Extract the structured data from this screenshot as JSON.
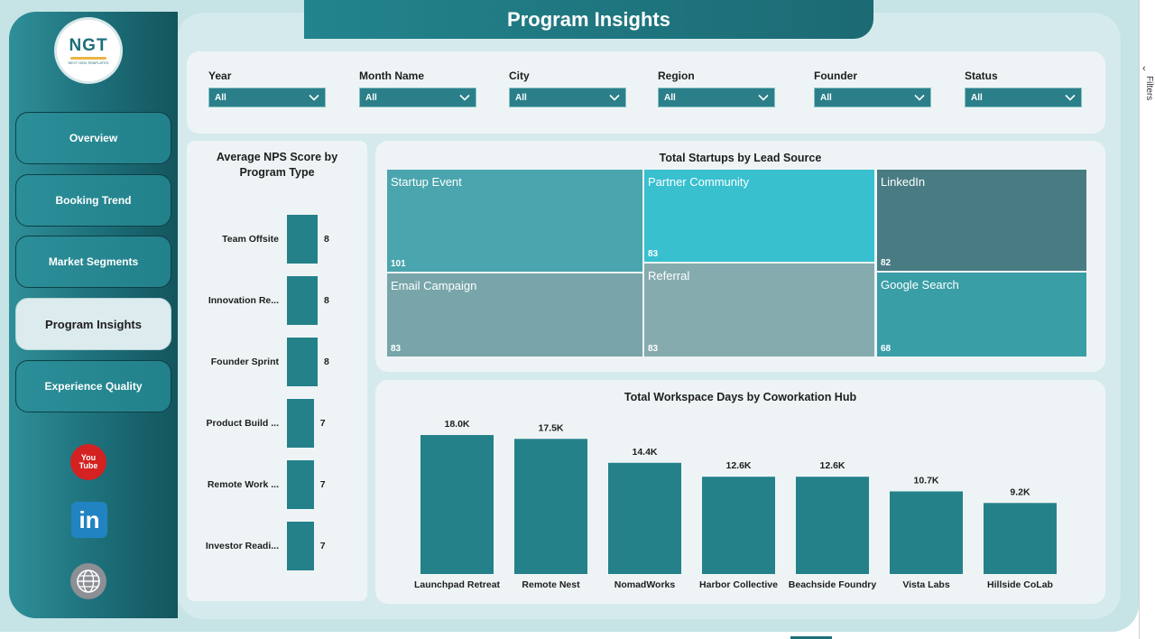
{
  "page": {
    "title": "Program Insights"
  },
  "brand": {
    "logo_text": "NGT",
    "logo_sub": "NEXT GEN TEMPLATES"
  },
  "colors": {
    "teal_dark": "#1c6e78",
    "bar_teal": "#24818a",
    "panel_bg": "#eef4f5",
    "page_bg": "#c6e3e6"
  },
  "nav": {
    "items": [
      {
        "label": "Overview",
        "active": false
      },
      {
        "label": "Booking Trend",
        "active": false
      },
      {
        "label": "Market Segments",
        "active": false
      },
      {
        "label": "Program Insights",
        "active": true
      },
      {
        "label": "Experience Quality",
        "active": false
      }
    ]
  },
  "social": {
    "youtube": {
      "icon": "youtube-icon",
      "text_top": "You",
      "text_bottom": "Tube"
    },
    "linkedin": {
      "icon": "linkedin-icon",
      "text": "in"
    },
    "web": {
      "icon": "globe-www-icon"
    }
  },
  "filters": [
    {
      "label": "Year",
      "value": "All"
    },
    {
      "label": "Month Name",
      "value": "All"
    },
    {
      "label": "City",
      "value": "All"
    },
    {
      "label": "Region",
      "value": "All"
    },
    {
      "label": "Founder",
      "value": "All"
    },
    {
      "label": "Status",
      "value": "All"
    }
  ],
  "edge": {
    "icon": "chevron-left-icon",
    "text": "Filters"
  },
  "chart_data": [
    {
      "type": "bar",
      "orientation": "horizontal",
      "title": "Average NPS Score by Program Type",
      "categories": [
        "Team Offsite",
        "Innovation Re...",
        "Founder Sprint",
        "Product Build ...",
        "Remote Work ...",
        "Investor Readi..."
      ],
      "values": [
        8,
        8,
        8,
        7,
        7,
        7
      ],
      "value_labels": [
        "8",
        "8",
        "8",
        "7",
        "7",
        "7"
      ]
    },
    {
      "type": "treemap",
      "title": "Total Startups by Lead Source",
      "categories": [
        "Startup Event",
        "Partner Community",
        "LinkedIn",
        "Email Campaign",
        "Referral",
        "Google Search"
      ],
      "values": [
        101,
        83,
        82,
        83,
        83,
        68
      ],
      "value_labels": [
        "101",
        "83",
        "82",
        "83",
        "83",
        "68"
      ],
      "colors": [
        "#4aa5ae",
        "#38c0cf",
        "#487c82",
        "#77a5aa",
        "#86abaf",
        "#3a9ea7"
      ]
    },
    {
      "type": "bar",
      "title": "Total Workspace Days by Coworkation Hub",
      "categories": [
        "Launchpad Retreat",
        "Remote Nest",
        "NomadWorks",
        "Harbor Collective",
        "Beachside Foundry",
        "Vista Labs",
        "Hillside CoLab"
      ],
      "values": [
        18000,
        17500,
        14400,
        12600,
        12600,
        10700,
        9200
      ],
      "value_labels": [
        "18.0K",
        "17.5K",
        "14.4K",
        "12.6K",
        "12.6K",
        "10.7K",
        "9.2K"
      ],
      "ylim": [
        0,
        18000
      ]
    }
  ]
}
